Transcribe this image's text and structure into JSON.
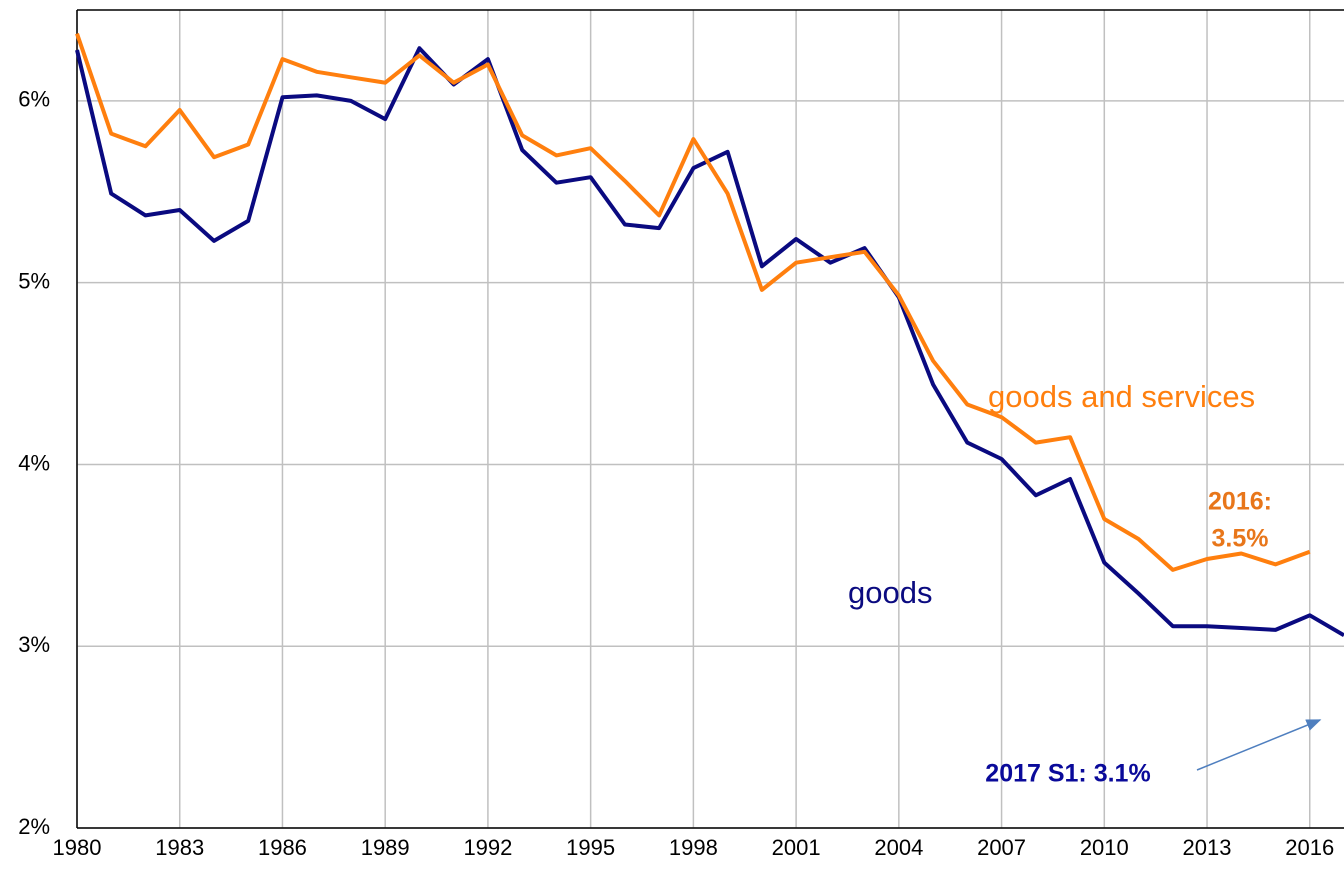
{
  "chart_data": {
    "type": "line",
    "x": [
      1980,
      1981,
      1982,
      1983,
      1984,
      1985,
      1986,
      1987,
      1988,
      1989,
      1990,
      1991,
      1992,
      1993,
      1994,
      1995,
      1996,
      1997,
      1998,
      1999,
      2000,
      2001,
      2002,
      2003,
      2004,
      2005,
      2006,
      2007,
      2008,
      2009,
      2010,
      2011,
      2012,
      2013,
      2014,
      2015,
      2016,
      2017
    ],
    "series": [
      {
        "name": "goods",
        "color": "#0a0a80",
        "values": [
          6.28,
          5.49,
          5.37,
          5.4,
          5.23,
          5.34,
          6.02,
          6.03,
          6.0,
          5.9,
          6.29,
          6.09,
          6.23,
          5.73,
          5.55,
          5.58,
          5.32,
          5.3,
          5.63,
          5.72,
          5.09,
          5.24,
          5.11,
          5.19,
          4.92,
          4.44,
          4.12,
          4.03,
          3.83,
          3.92,
          3.46,
          3.29,
          3.11,
          3.11,
          3.1,
          3.09,
          3.17,
          3.06
        ]
      },
      {
        "name": "goods and services",
        "color": "#ff7f0e",
        "values": [
          6.37,
          5.82,
          5.75,
          5.95,
          5.69,
          5.76,
          6.23,
          6.16,
          6.13,
          6.1,
          6.25,
          6.1,
          6.2,
          5.81,
          5.7,
          5.74,
          5.56,
          5.37,
          5.79,
          5.49,
          4.96,
          5.11,
          5.14,
          5.17,
          4.93,
          4.57,
          4.33,
          4.26,
          4.12,
          4.15,
          3.7,
          3.59,
          3.42,
          3.48,
          3.51,
          3.45,
          3.52,
          null
        ]
      }
    ],
    "annotations": [
      {
        "text": "2016:",
        "color": "#e8761a"
      },
      {
        "text": "3.5%",
        "color": "#e8761a"
      },
      {
        "text": "2017 S1: 3.1%",
        "color": "#0a0a9a"
      }
    ],
    "xlim": [
      1980,
      2017
    ],
    "xticks": [
      1980,
      1983,
      1986,
      1989,
      1992,
      1995,
      1998,
      2001,
      2004,
      2007,
      2010,
      2013,
      2016
    ],
    "ylim": [
      2,
      6.5
    ],
    "yticks": [
      {
        "value": 2,
        "label": "2%"
      },
      {
        "value": 3,
        "label": "3%"
      },
      {
        "value": 4,
        "label": "4%"
      },
      {
        "value": 5,
        "label": "5%"
      },
      {
        "value": 6,
        "label": "6%"
      }
    ],
    "grid": true
  }
}
